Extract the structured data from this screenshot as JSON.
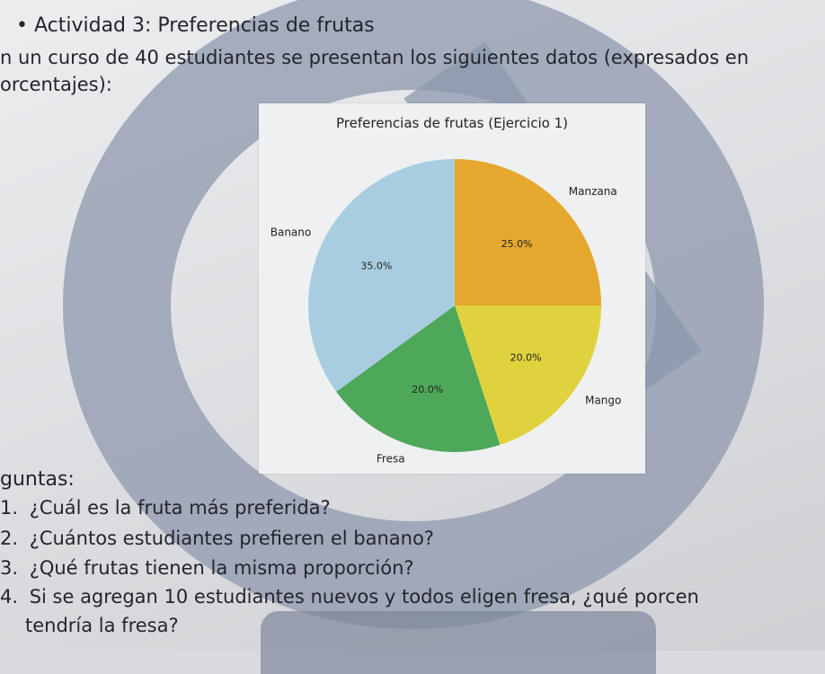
{
  "document": {
    "heading": "• Actividad 3: Preferencias de frutas",
    "intro_line1": "n un curso de 40 estudiantes se presentan los siguientes datos (expresados en",
    "intro_line2": "orcentajes):",
    "questions_heading": "guntas:",
    "questions": [
      {
        "num": "1.",
        "text": "¿Cuál es la fruta más preferida?"
      },
      {
        "num": "2.",
        "text": "¿Cuántos estudiantes prefieren el banano?"
      },
      {
        "num": "3.",
        "text": "¿Qué frutas tienen la misma proporción?"
      },
      {
        "num": "4.",
        "text": "Si se agregan 10 estudiantes nuevos y todos eligen fresa, ¿qué porcen"
      }
    ],
    "question4_continuation": "tendría la fresa?"
  },
  "chart_data": {
    "type": "pie",
    "title": "Preferencias de frutas (Ejercicio 1)",
    "slices": [
      {
        "label": "Manzana",
        "value": 25.0,
        "pct_label": "25.0%",
        "color": "#e5a82e"
      },
      {
        "label": "Mango",
        "value": 20.0,
        "pct_label": "20.0%",
        "color": "#e0d23d"
      },
      {
        "label": "Fresa",
        "value": 20.0,
        "pct_label": "20.0%",
        "color": "#4ea85a"
      },
      {
        "label": "Banano",
        "value": 35.0,
        "pct_label": "35.0%",
        "color": "#a9cde0"
      }
    ],
    "start_angle_deg": 90,
    "direction": "clockwise"
  }
}
